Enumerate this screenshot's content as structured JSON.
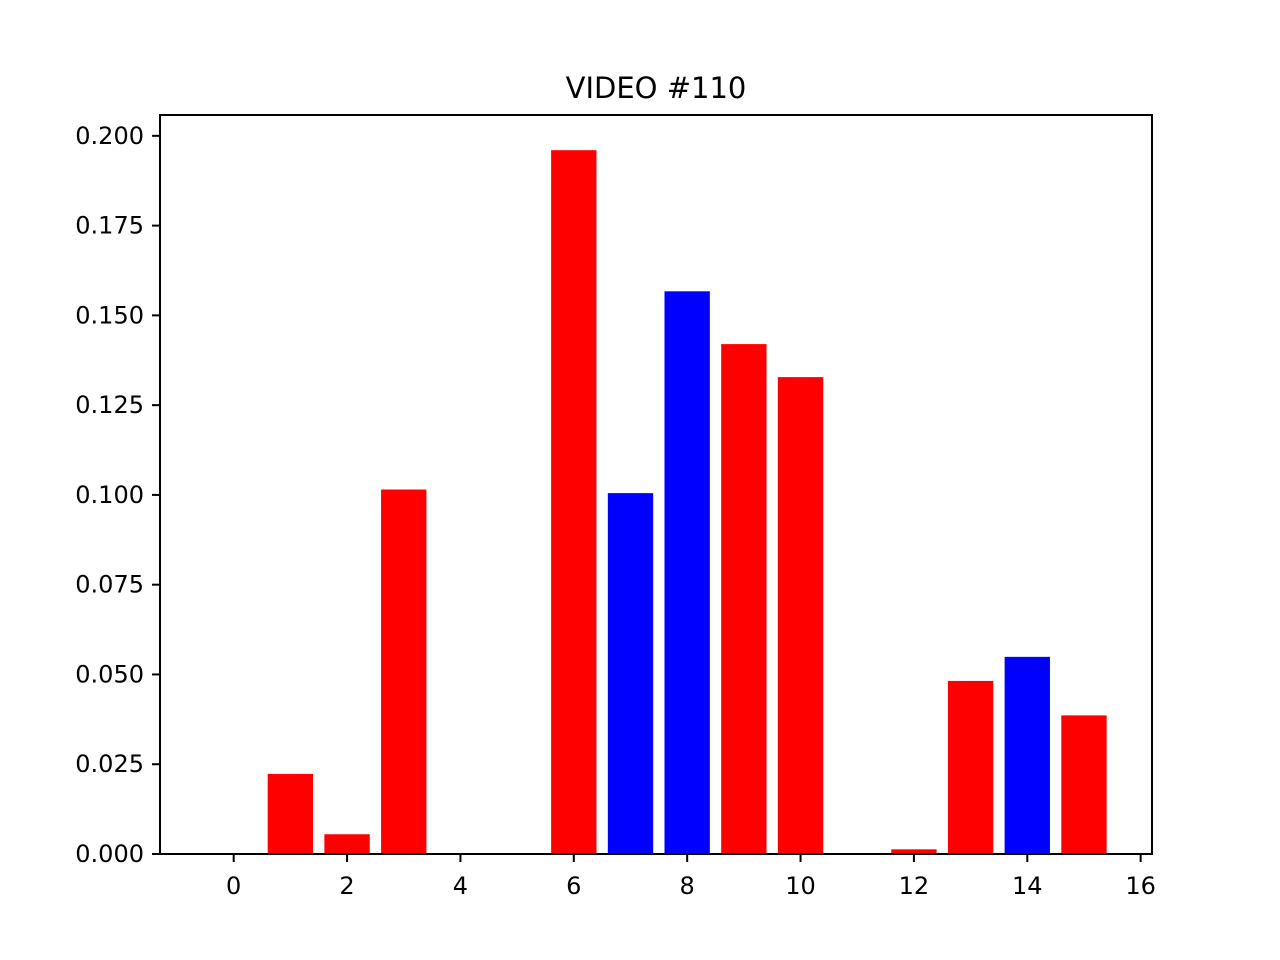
{
  "chart_data": {
    "type": "bar",
    "title": "VIDEO #110",
    "xlabel": "",
    "ylabel": "",
    "xlim": [
      -1.3,
      16.2
    ],
    "ylim": [
      0,
      0.2058
    ],
    "grid": false,
    "x_ticks": [
      0,
      2,
      4,
      6,
      8,
      10,
      12,
      14,
      16
    ],
    "x_tick_labels": [
      "0",
      "2",
      "4",
      "6",
      "8",
      "10",
      "12",
      "14",
      "16"
    ],
    "y_ticks": [
      0,
      0.025,
      0.05,
      0.075,
      0.1,
      0.125,
      0.15,
      0.175,
      0.2
    ],
    "y_tick_labels": [
      "0.000",
      "0.025",
      "0.050",
      "0.075",
      "0.100",
      "0.125",
      "0.150",
      "0.175",
      "0.200"
    ],
    "colors": {
      "red": "#ff0000",
      "blue": "#0000ff"
    },
    "bars": [
      {
        "x": 1,
        "value": 0.0223,
        "color": "red"
      },
      {
        "x": 2,
        "value": 0.0055,
        "color": "red"
      },
      {
        "x": 3,
        "value": 0.1015,
        "color": "red"
      },
      {
        "x": 6,
        "value": 0.196,
        "color": "red"
      },
      {
        "x": 7,
        "value": 0.1005,
        "color": "blue"
      },
      {
        "x": 8,
        "value": 0.1567,
        "color": "blue"
      },
      {
        "x": 9,
        "value": 0.142,
        "color": "red"
      },
      {
        "x": 10,
        "value": 0.1328,
        "color": "red"
      },
      {
        "x": 12,
        "value": 0.0013,
        "color": "red"
      },
      {
        "x": 13,
        "value": 0.0482,
        "color": "red"
      },
      {
        "x": 14,
        "value": 0.0549,
        "color": "blue"
      },
      {
        "x": 15,
        "value": 0.0386,
        "color": "red"
      }
    ]
  }
}
